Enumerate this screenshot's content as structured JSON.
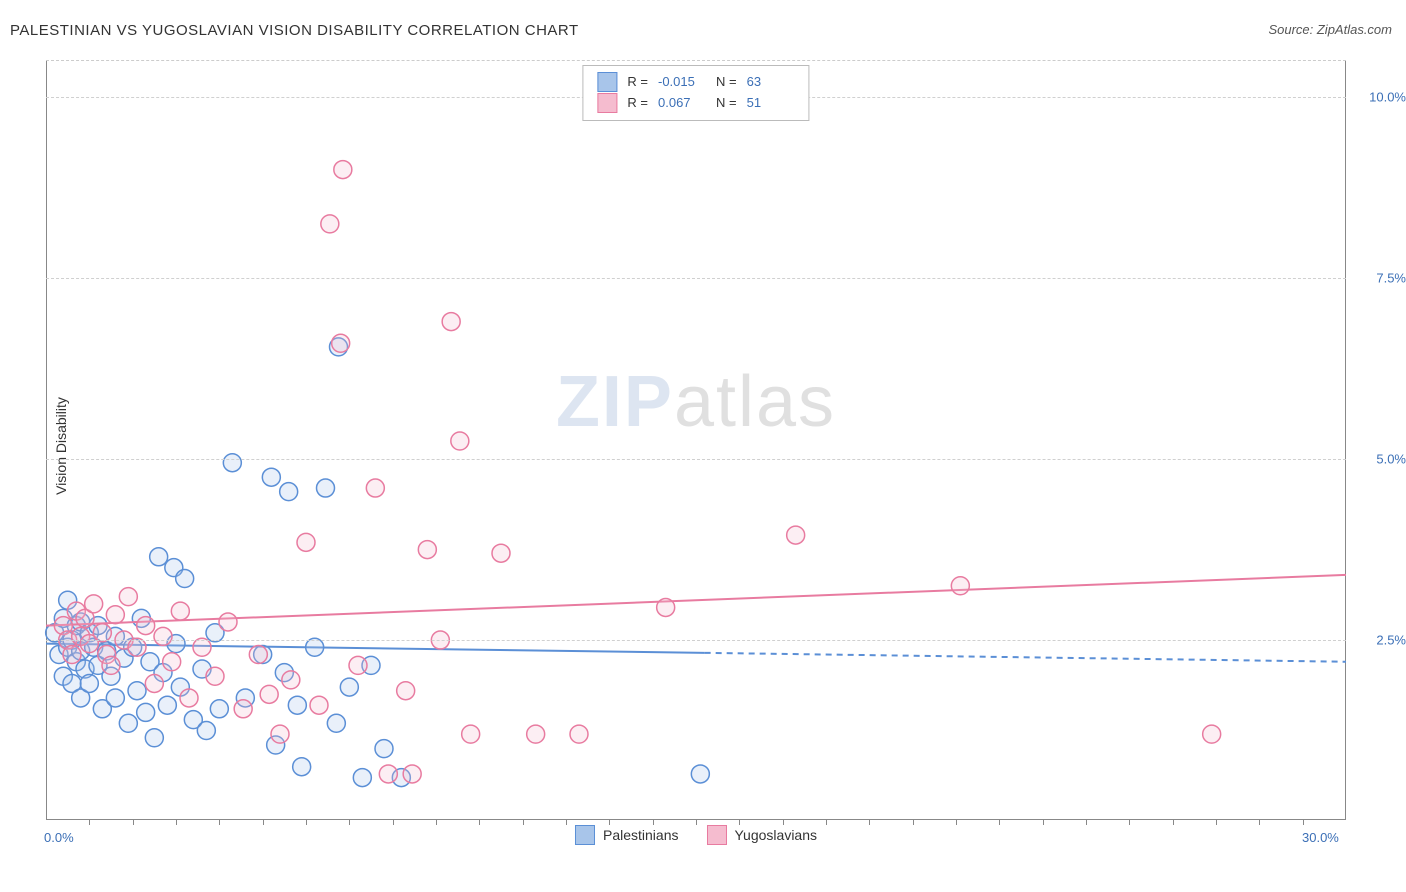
{
  "title": "PALESTINIAN VS YUGOSLAVIAN VISION DISABILITY CORRELATION CHART",
  "source_prefix": "Source: ",
  "source_name": "ZipAtlas.com",
  "y_axis_label": "Vision Disability",
  "watermark_zip": "ZIP",
  "watermark_atlas": "atlas",
  "chart": {
    "type": "scatter",
    "xlim": [
      0,
      30
    ],
    "ylim": [
      0,
      10.5
    ],
    "x_ticks_major": [
      0,
      30
    ],
    "x_ticks_minor": [
      1,
      2,
      3,
      4,
      5,
      6,
      7,
      8,
      9,
      10,
      11,
      12,
      13,
      14,
      15,
      16,
      17,
      18,
      19,
      20,
      21,
      22,
      23,
      24,
      25,
      26,
      27,
      28,
      29
    ],
    "y_gridlines": [
      2.5,
      5.0,
      7.5,
      10.0
    ],
    "x_tick_labels": {
      "0": "0.0%",
      "30": "30.0%"
    },
    "y_tick_labels": {
      "2.5": "2.5%",
      "5.0": "5.0%",
      "7.5": "7.5%",
      "10.0": "10.0%"
    },
    "background_color": "#ffffff",
    "grid_color": "#d0d0d0",
    "axis_color": "#888888",
    "marker_radius": 9,
    "marker_stroke_width": 1.5,
    "marker_fill_opacity": 0.25,
    "series": [
      {
        "name": "Palestinians",
        "color_stroke": "#5b8fd6",
        "color_fill": "#a8c5ea",
        "R": "-0.015",
        "N": "63",
        "trend": {
          "y_at_x0": 2.45,
          "y_at_x30": 2.2,
          "solid_to_x": 15.2
        },
        "points": [
          [
            0.2,
            2.6
          ],
          [
            0.3,
            2.3
          ],
          [
            0.4,
            2.0
          ],
          [
            0.4,
            2.8
          ],
          [
            0.5,
            2.4
          ],
          [
            0.5,
            3.05
          ],
          [
            0.6,
            1.9
          ],
          [
            0.6,
            2.5
          ],
          [
            0.7,
            2.2
          ],
          [
            0.7,
            2.7
          ],
          [
            0.8,
            1.7
          ],
          [
            0.8,
            2.35
          ],
          [
            0.8,
            2.75
          ],
          [
            0.9,
            2.1
          ],
          [
            1.0,
            2.6
          ],
          [
            1.0,
            1.9
          ],
          [
            1.1,
            2.4
          ],
          [
            1.2,
            2.15
          ],
          [
            1.2,
            2.7
          ],
          [
            1.3,
            1.55
          ],
          [
            1.4,
            2.35
          ],
          [
            1.5,
            2.0
          ],
          [
            1.6,
            2.55
          ],
          [
            1.6,
            1.7
          ],
          [
            1.8,
            2.25
          ],
          [
            1.9,
            1.35
          ],
          [
            2.0,
            2.4
          ],
          [
            2.1,
            1.8
          ],
          [
            2.2,
            2.8
          ],
          [
            2.3,
            1.5
          ],
          [
            2.4,
            2.2
          ],
          [
            2.5,
            1.15
          ],
          [
            2.6,
            3.65
          ],
          [
            2.7,
            2.05
          ],
          [
            2.95,
            3.5
          ],
          [
            2.8,
            1.6
          ],
          [
            3.0,
            2.45
          ],
          [
            3.1,
            1.85
          ],
          [
            3.2,
            3.35
          ],
          [
            3.4,
            1.4
          ],
          [
            3.6,
            2.1
          ],
          [
            3.7,
            1.25
          ],
          [
            3.9,
            2.6
          ],
          [
            4.0,
            1.55
          ],
          [
            4.3,
            4.95
          ],
          [
            4.6,
            1.7
          ],
          [
            5.0,
            2.3
          ],
          [
            5.2,
            4.75
          ],
          [
            5.3,
            1.05
          ],
          [
            5.5,
            2.05
          ],
          [
            5.6,
            4.55
          ],
          [
            5.9,
            0.75
          ],
          [
            5.8,
            1.6
          ],
          [
            6.2,
            2.4
          ],
          [
            6.45,
            4.6
          ],
          [
            6.7,
            1.35
          ],
          [
            6.75,
            6.55
          ],
          [
            7.0,
            1.85
          ],
          [
            7.3,
            0.6
          ],
          [
            7.5,
            2.15
          ],
          [
            7.8,
            1.0
          ],
          [
            8.2,
            0.6
          ],
          [
            15.1,
            0.65
          ]
        ]
      },
      {
        "name": "Yugoslavians",
        "color_stroke": "#e87ba0",
        "color_fill": "#f5bccf",
        "R": "0.067",
        "N": "51",
        "trend": {
          "y_at_x0": 2.7,
          "y_at_x30": 3.4,
          "solid_to_x": 30
        },
        "points": [
          [
            0.4,
            2.7
          ],
          [
            0.5,
            2.5
          ],
          [
            0.6,
            2.3
          ],
          [
            0.7,
            2.9
          ],
          [
            0.8,
            2.55
          ],
          [
            0.9,
            2.8
          ],
          [
            1.0,
            2.45
          ],
          [
            1.1,
            3.0
          ],
          [
            1.3,
            2.6
          ],
          [
            1.4,
            2.3
          ],
          [
            1.6,
            2.85
          ],
          [
            1.8,
            2.5
          ],
          [
            1.9,
            3.1
          ],
          [
            2.1,
            2.4
          ],
          [
            2.3,
            2.7
          ],
          [
            2.5,
            1.9
          ],
          [
            2.7,
            2.55
          ],
          [
            2.9,
            2.2
          ],
          [
            3.1,
            2.9
          ],
          [
            3.3,
            1.7
          ],
          [
            3.6,
            2.4
          ],
          [
            3.9,
            2.0
          ],
          [
            4.2,
            2.75
          ],
          [
            4.55,
            1.55
          ],
          [
            4.9,
            2.3
          ],
          [
            5.15,
            1.75
          ],
          [
            5.4,
            1.2
          ],
          [
            5.65,
            1.95
          ],
          [
            6.0,
            3.85
          ],
          [
            6.3,
            1.6
          ],
          [
            6.55,
            8.25
          ],
          [
            6.8,
            6.6
          ],
          [
            6.85,
            9.0
          ],
          [
            7.2,
            2.15
          ],
          [
            7.6,
            4.6
          ],
          [
            7.9,
            0.65
          ],
          [
            8.3,
            1.8
          ],
          [
            8.45,
            0.65
          ],
          [
            8.8,
            3.75
          ],
          [
            9.1,
            2.5
          ],
          [
            9.35,
            6.9
          ],
          [
            9.55,
            5.25
          ],
          [
            9.8,
            1.2
          ],
          [
            10.5,
            3.7
          ],
          [
            11.3,
            1.2
          ],
          [
            12.3,
            1.2
          ],
          [
            14.3,
            2.95
          ],
          [
            17.3,
            3.95
          ],
          [
            21.1,
            3.25
          ],
          [
            26.9,
            1.2
          ],
          [
            1.5,
            2.15
          ]
        ]
      }
    ]
  },
  "legend_top": {
    "r_label": "R =",
    "n_label": "N ="
  }
}
